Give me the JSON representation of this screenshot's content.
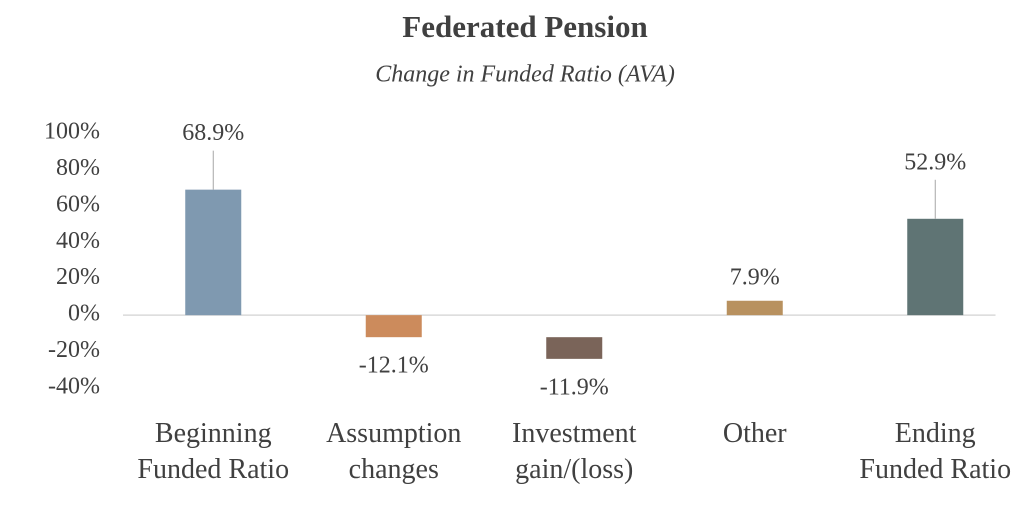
{
  "chart_data": {
    "type": "bar",
    "title": "Federated Pension",
    "subtitle": "Change in Funded Ratio (AVA)",
    "categories": [
      "Beginning Funded Ratio",
      "Assumption changes",
      "Investment gain/(loss)",
      "Other",
      "Ending Funded Ratio"
    ],
    "values": [
      68.9,
      -12.1,
      -11.9,
      7.9,
      52.9
    ],
    "value_labels": [
      "68.9%",
      "-12.1%",
      "-11.9%",
      "7.9%",
      "52.9%"
    ],
    "colors": [
      "#7f99b0",
      "#cc8b5c",
      "#7a6459",
      "#b8915f",
      "#5f7474"
    ],
    "ylim": [
      -40,
      100
    ],
    "yticks": [
      {
        "value": -40,
        "label": "-40%"
      },
      {
        "value": -20,
        "label": "-20%"
      },
      {
        "value": 0,
        "label": "0%"
      },
      {
        "value": 20,
        "label": "20%"
      },
      {
        "value": 40,
        "label": "40%"
      },
      {
        "value": 60,
        "label": "60%"
      },
      {
        "value": 80,
        "label": "80%"
      },
      {
        "value": 100,
        "label": "100%"
      }
    ],
    "grid": false
  }
}
